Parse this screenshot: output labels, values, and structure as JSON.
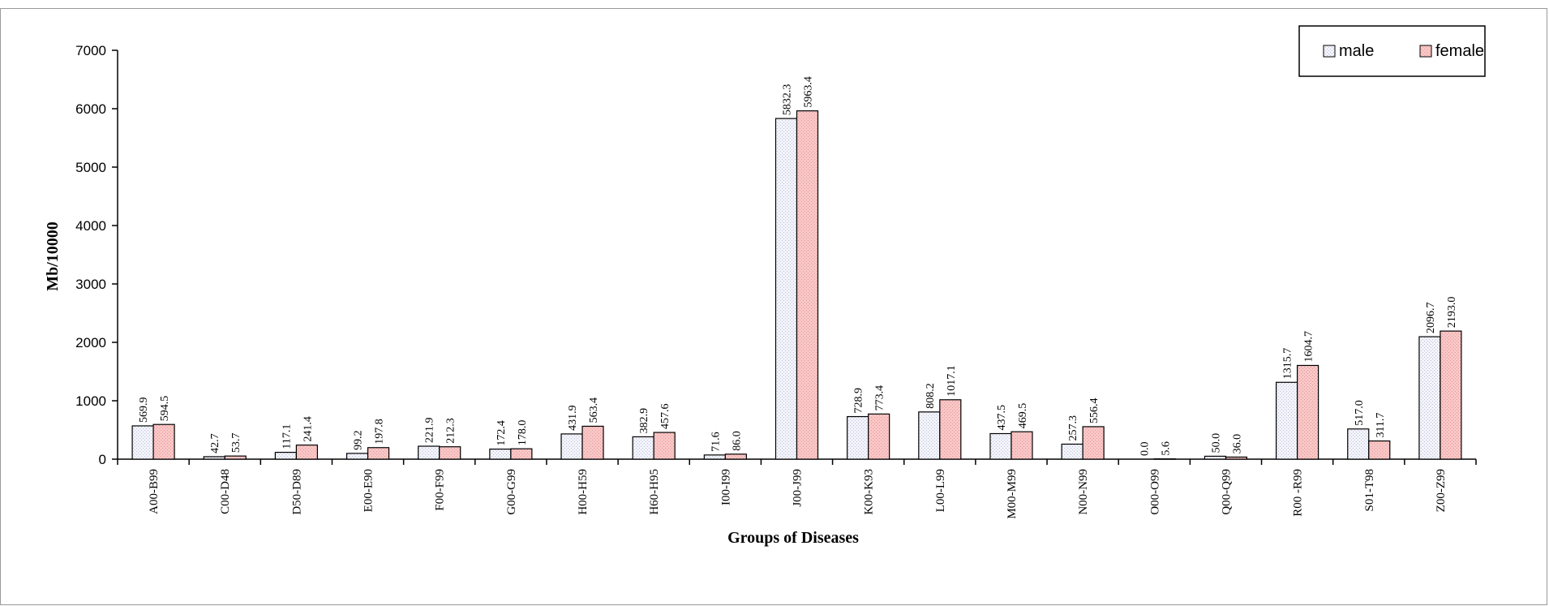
{
  "chart_data": {
    "type": "bar",
    "title": "",
    "xlabel": "Groups of Diseases",
    "ylabel": "Mb/10000",
    "ylim": [
      0,
      7000
    ],
    "yticks": [
      0,
      1000,
      2000,
      3000,
      4000,
      5000,
      6000,
      7000
    ],
    "grid": false,
    "legend_position": "top-right",
    "categories": [
      "A00-B99",
      "C00-D48",
      "D50-D89",
      "E00-E90",
      "F00-F99",
      "G00-G99",
      "H00-H59",
      "H60-H95",
      "I00-I99",
      "J00-J99",
      "K00-K93",
      "L00-L99",
      "M00-M99",
      "N00-N99",
      "O00-O99",
      "Q00-Q99",
      "R00 -R99",
      "S01-T98",
      "Z00-Z99"
    ],
    "series": [
      {
        "name": "male",
        "color": "#eef0f7",
        "values": [
          569.9,
          42.7,
          117.1,
          99.2,
          221.9,
          172.4,
          431.9,
          382.9,
          71.6,
          5832.3,
          728.9,
          808.2,
          437.5,
          257.3,
          0.0,
          50.0,
          1315.7,
          517.0,
          2096.7
        ],
        "labels": [
          "569.9",
          "42.7",
          "117.1",
          "99.2",
          "221.9",
          "172.4",
          "431.9",
          "382.9",
          "71.6",
          "5832.3",
          "728.9",
          "808.2",
          "437.5",
          "257.3",
          "0.0",
          "50.0",
          "1315.7",
          "517.0",
          "2096.7"
        ]
      },
      {
        "name": "female",
        "color": "#f7b9b9",
        "values": [
          594.5,
          53.7,
          241.4,
          197.8,
          212.3,
          178.0,
          563.4,
          457.6,
          86.0,
          5963.4,
          773.4,
          1017.1,
          469.5,
          556.4,
          5.6,
          36.0,
          1604.7,
          311.7,
          2193.0
        ],
        "labels": [
          "594.5",
          "53.7",
          "241.4",
          "197.8",
          "212.3",
          "178.0",
          "563.4",
          "457.6",
          "86.0",
          "5963.4",
          "773.4",
          "1017.1",
          "469.5",
          "556.4",
          "5.6",
          "36.0",
          "1604.7",
          "311.7",
          "2193.0"
        ]
      }
    ]
  }
}
